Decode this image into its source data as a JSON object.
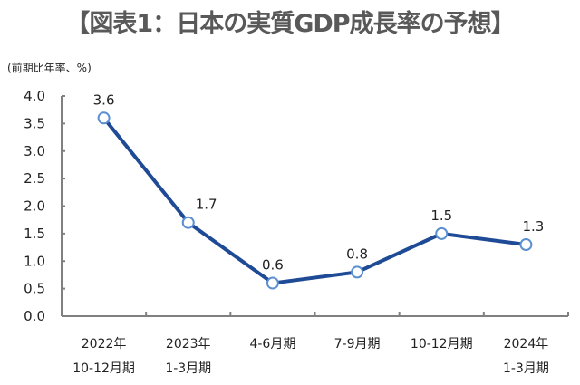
{
  "chart_data": {
    "type": "line",
    "title": "【図表1：日本の実質GDP成長率の予想】",
    "ylabel": "(前期比年率、%)",
    "xlabel": "",
    "categories": [
      [
        "2022年",
        "10-12月期"
      ],
      [
        "2023年",
        "1-3月期"
      ],
      [
        "4-6月期"
      ],
      [
        "7-9月期"
      ],
      [
        "10-12月期"
      ],
      [
        "2024年",
        "1-3月期"
      ]
    ],
    "series": [
      {
        "name": "実質GDP成長率",
        "values": [
          3.6,
          1.7,
          0.6,
          0.8,
          1.5,
          1.3
        ]
      }
    ],
    "data_labels": [
      "3.6",
      "1.7",
      "0.6",
      "0.8",
      "1.5",
      "1.3"
    ],
    "ylim": [
      0,
      4.0
    ],
    "yticks": [
      "0.0",
      "0.5",
      "1.0",
      "1.5",
      "2.0",
      "2.5",
      "3.0",
      "3.5",
      "4.0"
    ],
    "grid": false,
    "colors": {
      "line": "#1F4A96",
      "marker_stroke": "#5B8FD0",
      "axis": "#808080",
      "title": "#595959"
    }
  }
}
